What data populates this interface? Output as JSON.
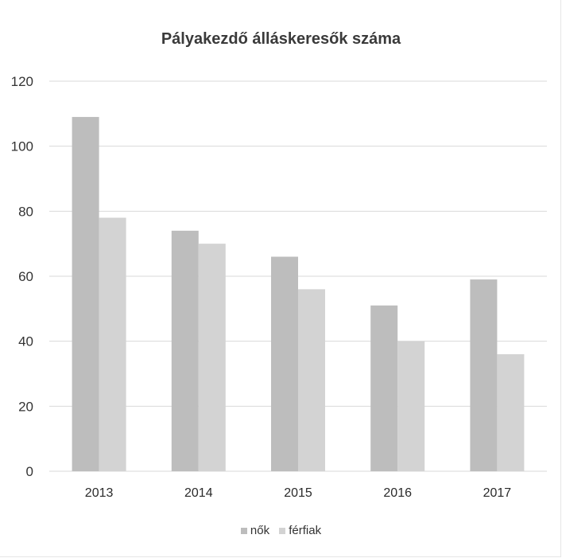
{
  "chart_data": {
    "type": "bar",
    "title": "Pályakezdő álláskeresők száma",
    "categories": [
      "2013",
      "2014",
      "2015",
      "2016",
      "2017"
    ],
    "series": [
      {
        "name": "nők",
        "values": [
          109,
          74,
          66,
          51,
          59
        ],
        "color": "#bdbdbd"
      },
      {
        "name": "férfiak",
        "values": [
          78,
          70,
          56,
          40,
          36
        ],
        "color": "#d3d3d3"
      }
    ],
    "yticks": [
      "0",
      "20",
      "40",
      "60",
      "80",
      "100",
      "120"
    ],
    "ylim": [
      0,
      120
    ],
    "grid": true,
    "legend": "bottom"
  }
}
